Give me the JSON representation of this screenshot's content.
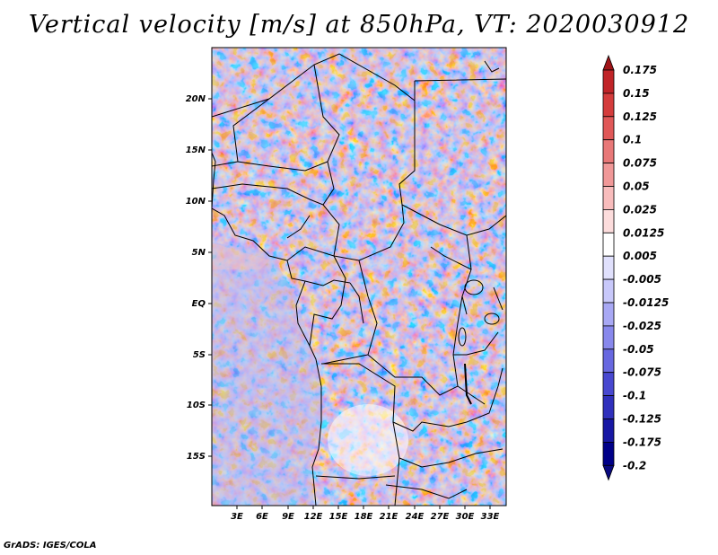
{
  "title": "Vertical velocity [m/s] at 850hPa, VT: 2020030912",
  "credit": "GrADS: IGES/COLA",
  "map": {
    "lat_labels": [
      "20N",
      "15N",
      "10N",
      "5N",
      "EQ",
      "5S",
      "10S",
      "15S"
    ],
    "lon_labels": [
      "3E",
      "6E",
      "9E",
      "12E",
      "15E",
      "18E",
      "21E",
      "24E",
      "27E",
      "30E",
      "33E"
    ]
  },
  "colorbar": {
    "labels": [
      "0.175",
      "0.15",
      "0.125",
      "0.1",
      "0.075",
      "0.05",
      "0.025",
      "0.0125",
      "0.005",
      "-0.005",
      "-0.0125",
      "-0.025",
      "-0.05",
      "-0.075",
      "-0.1",
      "-0.125",
      "-0.175",
      "-0.2"
    ],
    "colors": [
      "#a01418",
      "#c02428",
      "#d43c3c",
      "#e05858",
      "#e87878",
      "#f09898",
      "#f8bcbc",
      "#fcdcdc",
      "#ffffff",
      "#e0e0fc",
      "#c8c8fa",
      "#a8a8f4",
      "#8888ec",
      "#6868e0",
      "#4848d0",
      "#3030bc",
      "#1818a4",
      "#000088",
      "#0a0a80"
    ]
  }
}
